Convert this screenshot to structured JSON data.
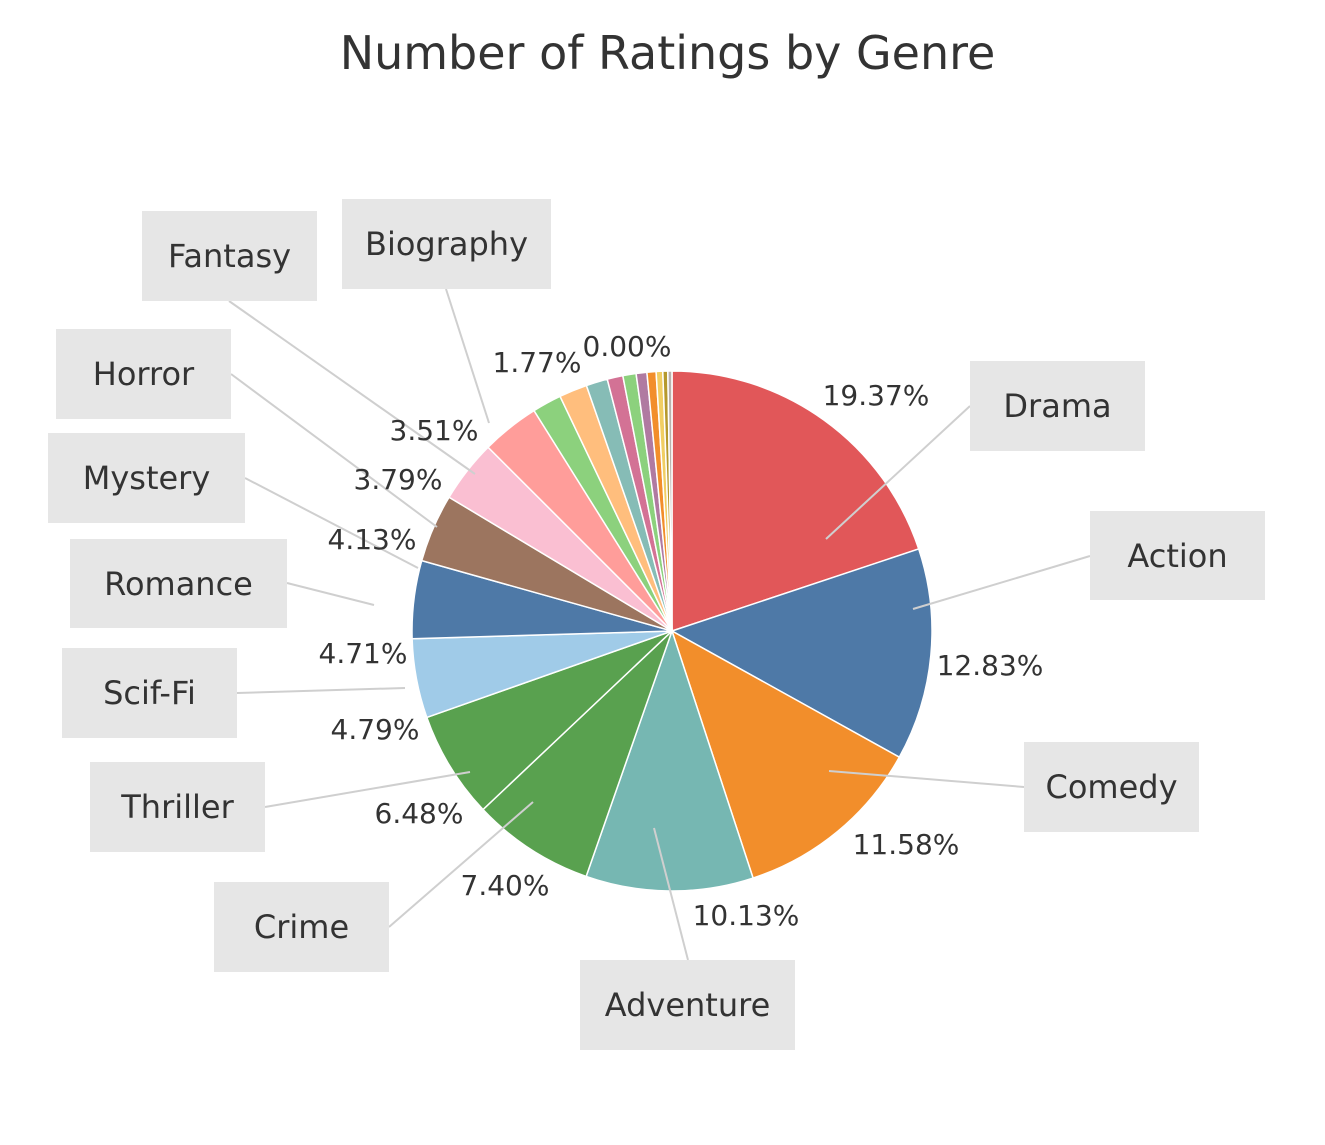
{
  "chart_data": {
    "type": "pie",
    "title": "Number of Ratings by Genre",
    "start_angle_deg": 0,
    "direction": "clockwise",
    "slices": [
      {
        "label": "Drama",
        "value": 19.37,
        "display": "19.37%",
        "color": "#e15759"
      },
      {
        "label": "Action",
        "value": 12.83,
        "display": "12.83%",
        "color": "#4e79a7"
      },
      {
        "label": "Comedy",
        "value": 11.58,
        "display": "11.58%",
        "color": "#f28e2b"
      },
      {
        "label": "Adventure",
        "value": 10.13,
        "display": "10.13%",
        "color": "#76b7b2"
      },
      {
        "label": "Crime",
        "value": 7.4,
        "display": "7.40%",
        "color": "#59a14f"
      },
      {
        "label": "Thriller",
        "value": 6.48,
        "display": "6.48%",
        "color": "#59a14f"
      },
      {
        "label": "Scif-Fi",
        "value": 4.79,
        "display": "4.79%",
        "color": "#a0cbe8"
      },
      {
        "label": "Romance",
        "value": 4.71,
        "display": "4.71%",
        "color": "#4e79a7"
      },
      {
        "label": "Mystery",
        "value": 4.13,
        "display": "4.13%",
        "color": "#9c755f"
      },
      {
        "label": "Horror",
        "value": 3.79,
        "display": "3.79%",
        "color": "#fabfd2"
      },
      {
        "label": "Fantasy",
        "value": 3.51,
        "display": "3.51%",
        "color": "#ff9d9a"
      },
      {
        "label": "Biography",
        "value": 1.77,
        "display": "1.77%",
        "color": "#8cd17d"
      },
      {
        "label": "",
        "value": 1.7,
        "display": "",
        "color": "#ffbe7d"
      },
      {
        "label": "",
        "value": 1.3,
        "display": "",
        "color": "#86bcb6"
      },
      {
        "label": "",
        "value": 0.95,
        "display": "",
        "color": "#d37295"
      },
      {
        "label": "",
        "value": 0.8,
        "display": "",
        "color": "#8cd17d"
      },
      {
        "label": "",
        "value": 0.65,
        "display": "",
        "color": "#b07aa1"
      },
      {
        "label": "",
        "value": 0.55,
        "display": "",
        "color": "#f28e2b"
      },
      {
        "label": "",
        "value": 0.4,
        "display": "",
        "color": "#f1ce63"
      },
      {
        "label": "",
        "value": 0.3,
        "display": "",
        "color": "#b6992d"
      },
      {
        "label": "",
        "value": 0.25,
        "display": "",
        "color": "#bab0ac"
      },
      {
        "label": "",
        "value": 0.0,
        "display": "0.00%",
        "color": "#d4a6c8"
      }
    ]
  }
}
